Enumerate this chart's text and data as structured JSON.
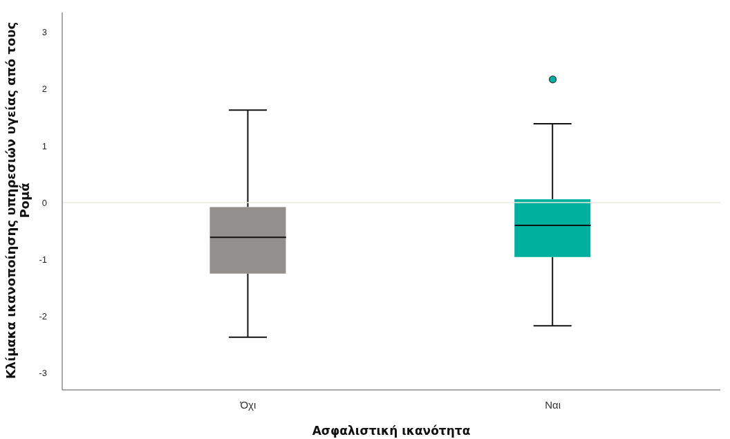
{
  "chart_data": {
    "type": "box",
    "xlabel": "Ασφαλιστική ικανότητα",
    "ylabel": "Κλίμακα ικανοποίησης υπηρεσιών υγείας από τους Ρομά",
    "categories": [
      "Όχι",
      "Ναι"
    ],
    "colors": [
      "#928f8d",
      "#00b09e"
    ],
    "boxes": [
      {
        "low": -2.37,
        "q1": -1.25,
        "median": -0.61,
        "q3": -0.08,
        "high": 1.63
      },
      {
        "low": -2.17,
        "q1": -0.96,
        "median": -0.4,
        "q3": 0.06,
        "high": 1.39,
        "outliers": [
          2.17
        ]
      }
    ],
    "ylim": [
      -3.3,
      3.35
    ],
    "yticks": [
      -3,
      -2,
      -1,
      0,
      1,
      2,
      3
    ],
    "ref_lines": [
      {
        "axis": "y",
        "value": 0,
        "color": "#ece9dc"
      }
    ],
    "grid": false
  }
}
